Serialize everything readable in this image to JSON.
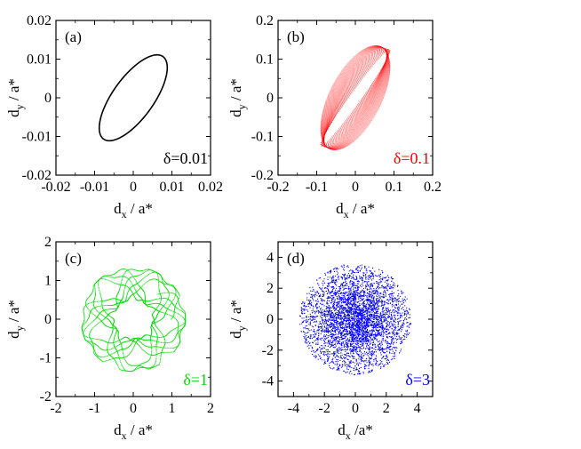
{
  "chart_data": [
    {
      "type": "line",
      "panel_label": "(a)",
      "xlabel": "d",
      "xlabel_sub": "x",
      "xlabel_rest": " / a*",
      "ylabel": "d",
      "ylabel_sub": "y",
      "ylabel_rest": " / a*",
      "xlim": [
        -0.02,
        0.02
      ],
      "ylim": [
        -0.02,
        0.02
      ],
      "xticks": [
        -0.02,
        -0.01,
        0,
        0.01,
        0.02
      ],
      "yticks": [
        -0.02,
        -0.01,
        0,
        0.01,
        0.02
      ],
      "xtick_labels": [
        "-0.02",
        "-0.01",
        "0",
        "0.01",
        "0.02"
      ],
      "ytick_labels": [
        "-0.02",
        "-0.01",
        "0",
        "0.01",
        "0.02"
      ],
      "annotation": "δ=0.01",
      "color": "#000000",
      "series": [
        {
          "shape": "ellipse",
          "center": [
            0,
            0
          ],
          "x_max": 0.0088,
          "y_max": 0.0111,
          "x_at_y_max": 0.0062,
          "y_at_x_max": 0.0078
        }
      ]
    },
    {
      "type": "scatter",
      "panel_label": "(b)",
      "xlabel": "d",
      "xlabel_sub": "x",
      "xlabel_rest": " / a*",
      "ylabel": "d",
      "ylabel_sub": "y",
      "ylabel_rest": " / a*",
      "xlim": [
        -0.2,
        0.2
      ],
      "ylim": [
        -0.2,
        0.2
      ],
      "xticks": [
        -0.2,
        -0.1,
        0,
        0.1,
        0.2
      ],
      "yticks": [
        -0.2,
        -0.1,
        0,
        0.1,
        0.2
      ],
      "xtick_labels": [
        "-0.2",
        "-0.1",
        "0",
        "0.1",
        "0.2"
      ],
      "ytick_labels": [
        "-0.2",
        "-0.1",
        "0",
        "0.1",
        "0.2"
      ],
      "annotation": "δ=0.1",
      "color": "#ff0000",
      "series": [
        {
          "shape": "twisted-ellipse-band",
          "x_extent": [
            -0.09,
            0.09
          ],
          "y_extent": [
            -0.135,
            0.135
          ],
          "x_at_y_max": [
            0.0,
            0.09
          ],
          "band_cross_y": 0.0
        }
      ]
    },
    {
      "type": "scatter",
      "panel_label": "(c)",
      "xlabel": "d",
      "xlabel_sub": "x",
      "xlabel_rest": " / a*",
      "ylabel": "d",
      "ylabel_sub": "y",
      "ylabel_rest": " / a*",
      "xlim": [
        -2,
        2
      ],
      "ylim": [
        -2,
        2
      ],
      "xticks": [
        -2,
        -1,
        0,
        1,
        2
      ],
      "yticks": [
        -2,
        -1,
        0,
        1,
        2
      ],
      "xtick_labels": [
        "-2",
        "-1",
        "0",
        "1",
        "2"
      ],
      "ytick_labels": [
        "-2",
        "-1",
        "0",
        "1",
        "2"
      ],
      "annotation": "δ=1",
      "color": "#00dd00",
      "series": [
        {
          "shape": "ring",
          "center": [
            0,
            0
          ],
          "inner_radius": 0.5,
          "outer_radius": 1.35,
          "lobes": 11
        }
      ]
    },
    {
      "type": "scatter",
      "panel_label": "(d)",
      "xlabel": "d",
      "xlabel_sub": "x",
      "xlabel_rest": " /a*",
      "ylabel": "d",
      "ylabel_sub": "y",
      "ylabel_rest": " / a*",
      "xlim": [
        -5,
        5
      ],
      "ylim": [
        -5,
        5
      ],
      "xticks": [
        -4,
        -2,
        0,
        2,
        4
      ],
      "yticks": [
        -4,
        -2,
        0,
        2,
        4
      ],
      "xtick_labels": [
        "-4",
        "-2",
        "0",
        "2",
        "4"
      ],
      "ytick_labels": [
        "-4",
        "-2",
        "0",
        "2",
        "4"
      ],
      "annotation": "δ=3",
      "color": "#0000ff",
      "series": [
        {
          "shape": "cloud",
          "center": [
            0,
            0
          ],
          "radius": 3.6
        }
      ]
    }
  ]
}
